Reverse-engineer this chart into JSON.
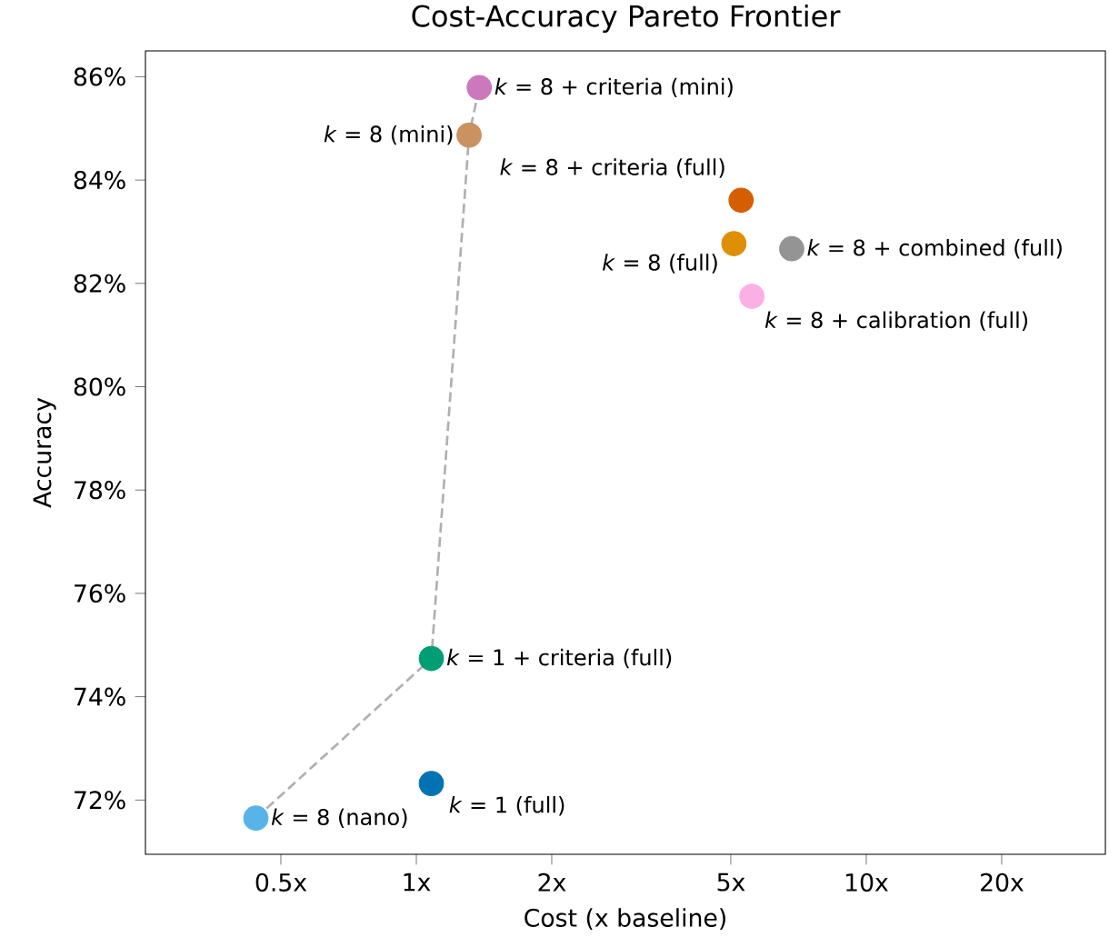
{
  "chart_data": {
    "type": "scatter",
    "title": "Cost-Accuracy Pareto Frontier",
    "xlabel": "Cost (x baseline)",
    "ylabel": "Accuracy",
    "log": "x",
    "marker": "circle",
    "legend": false,
    "grid": false,
    "xlim": [
      0.25,
      34
    ],
    "ylim": [
      70.95,
      86.5
    ],
    "xticks": [
      {
        "value": 0.5,
        "label": "0.5x"
      },
      {
        "value": 1,
        "label": "1x"
      },
      {
        "value": 2,
        "label": "2x"
      },
      {
        "value": 5,
        "label": "5x"
      },
      {
        "value": 10,
        "label": "10x"
      },
      {
        "value": 20,
        "label": "20x"
      }
    ],
    "yticks": [
      {
        "value": 72,
        "label": "72%"
      },
      {
        "value": 74,
        "label": "74%"
      },
      {
        "value": 76,
        "label": "76%"
      },
      {
        "value": 78,
        "label": "78%"
      },
      {
        "value": 80,
        "label": "80%"
      },
      {
        "value": 82,
        "label": "82%"
      },
      {
        "value": 84,
        "label": "84%"
      },
      {
        "value": 86,
        "label": "86%"
      }
    ],
    "series": [
      {
        "type": "line",
        "color": "#b0b0b0",
        "line_style": "dashed",
        "marker": "none",
        "x": [
          0.44,
          1.08,
          1.31,
          1.38
        ],
        "values": [
          71.65,
          74.74,
          84.87,
          85.79
        ]
      },
      {
        "name": "*k* = 8 (nano)",
        "color": "#56b4e9",
        "x": [
          0.44
        ],
        "values": [
          71.65
        ]
      },
      {
        "name": "*k* = 1 (full)",
        "color": "#0173b2",
        "x": [
          1.08
        ],
        "values": [
          72.32
        ]
      },
      {
        "name": "*k* = 1 + criteria (full)",
        "color": "#029e73",
        "x": [
          1.08
        ],
        "values": [
          74.74
        ]
      },
      {
        "name": "*k* = 8 (mini)",
        "color": "#ca9161",
        "x": [
          1.31
        ],
        "values": [
          84.87
        ]
      },
      {
        "name": "*k* = 8 + criteria (mini)",
        "color": "#cc78bc",
        "x": [
          1.38
        ],
        "values": [
          85.79
        ]
      },
      {
        "name": "*k* = 8 + criteria (full)",
        "color": "#d55e00",
        "x": [
          5.27
        ],
        "values": [
          83.61
        ]
      },
      {
        "name": "*k* = 8 (full)",
        "color": "#de8f05",
        "x": [
          5.08
        ],
        "values": [
          82.77
        ]
      },
      {
        "name": "*k* = 8 + combined (full)",
        "color": "#949494",
        "x": [
          6.83
        ],
        "values": [
          82.67
        ]
      },
      {
        "name": "*k* = 8 + calibration (full)",
        "color": "#fbafe4",
        "x": [
          5.57
        ],
        "values": [
          81.75
        ]
      }
    ]
  }
}
